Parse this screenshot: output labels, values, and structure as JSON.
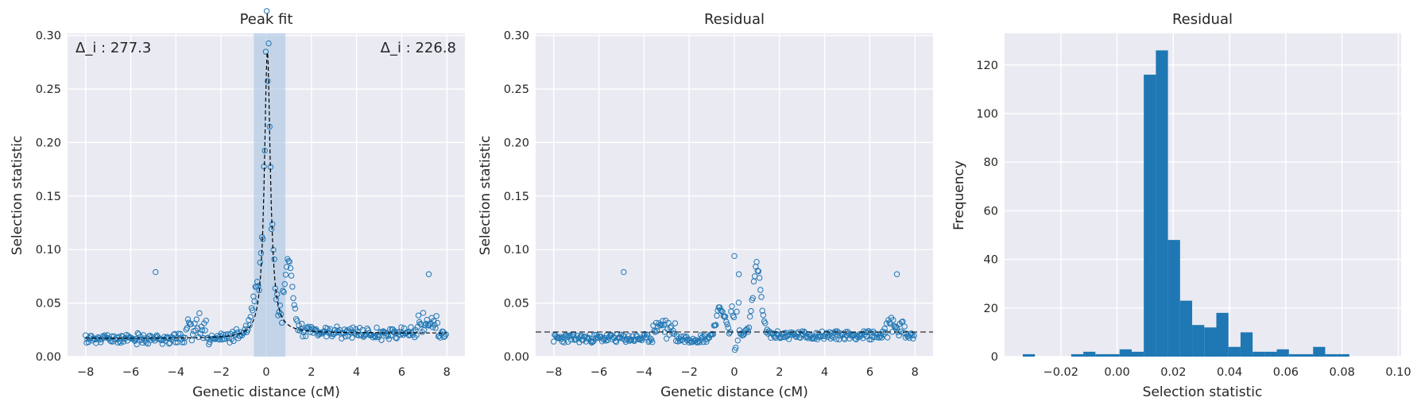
{
  "chart_data": [
    {
      "type": "scatter",
      "title": "Peak fit",
      "xlabel": "Genetic distance (cM)",
      "ylabel": "Selection statistic",
      "xlim": [
        -8.8,
        8.8
      ],
      "ylim": [
        0,
        0.302
      ],
      "xticks": [
        "−8",
        "−6",
        "−4",
        "−2",
        "0",
        "2",
        "4",
        "6",
        "8"
      ],
      "yticks": [
        "0.00",
        "0.05",
        "0.10",
        "0.15",
        "0.20",
        "0.25",
        "0.30"
      ],
      "annotations": {
        "left": "Δ_i : 277.3",
        "right": "Δ_i : 226.8"
      },
      "shaded_region": [
        -0.55,
        0.85
      ],
      "fit_baseline_left": 0.017,
      "fit_baseline_right": 0.022,
      "fit_peak": 0.285,
      "fit_center": 0.05,
      "fit_width": 0.16,
      "outliers": [
        [
          -4.9,
          0.079
        ],
        [
          7.2,
          0.077
        ]
      ],
      "grid": true,
      "colors": {
        "marker": "#1f77b4",
        "shade": "#a8c5e2",
        "fit": "#000000",
        "background": "#eaeaf2"
      }
    },
    {
      "type": "scatter",
      "title": "Residual",
      "xlabel": "Genetic distance (cM)",
      "ylabel": "Selection statistic",
      "xlim": [
        -8.8,
        8.8
      ],
      "ylim": [
        0,
        0.302
      ],
      "xticks": [
        "−8",
        "−6",
        "−4",
        "−2",
        "0",
        "2",
        "4",
        "6",
        "8"
      ],
      "yticks": [
        "0.00",
        "0.05",
        "0.10",
        "0.15",
        "0.20",
        "0.25",
        "0.30"
      ],
      "reference_line": 0.023,
      "outliers": [
        [
          -4.9,
          0.079
        ],
        [
          0.0,
          0.094
        ],
        [
          0.2,
          0.077
        ],
        [
          7.2,
          0.077
        ]
      ],
      "grid": true,
      "colors": {
        "marker": "#1f77b4",
        "line": "#000000",
        "background": "#eaeaf2"
      }
    },
    {
      "type": "bar",
      "title": "Residual",
      "xlabel": "Selection statistic",
      "ylabel": "Frequency",
      "xlim": [
        -0.04,
        0.101
      ],
      "ylim": [
        0,
        133
      ],
      "xticks": [
        "−0.02",
        "0.00",
        "0.02",
        "0.04",
        "0.06",
        "0.08",
        "0.10"
      ],
      "yticks": [
        "0",
        "20",
        "40",
        "60",
        "80",
        "100",
        "120"
      ],
      "bin_start": -0.0335,
      "bin_width": 0.0043,
      "values": [
        1,
        0,
        0,
        0,
        1,
        2,
        1,
        1,
        3,
        2,
        116,
        126,
        48,
        23,
        13,
        12,
        18,
        4,
        10,
        2,
        2,
        3,
        1,
        1,
        4,
        1,
        1
      ],
      "grid": true,
      "colors": {
        "bar": "#1f77b4",
        "background": "#eaeaf2"
      }
    }
  ]
}
